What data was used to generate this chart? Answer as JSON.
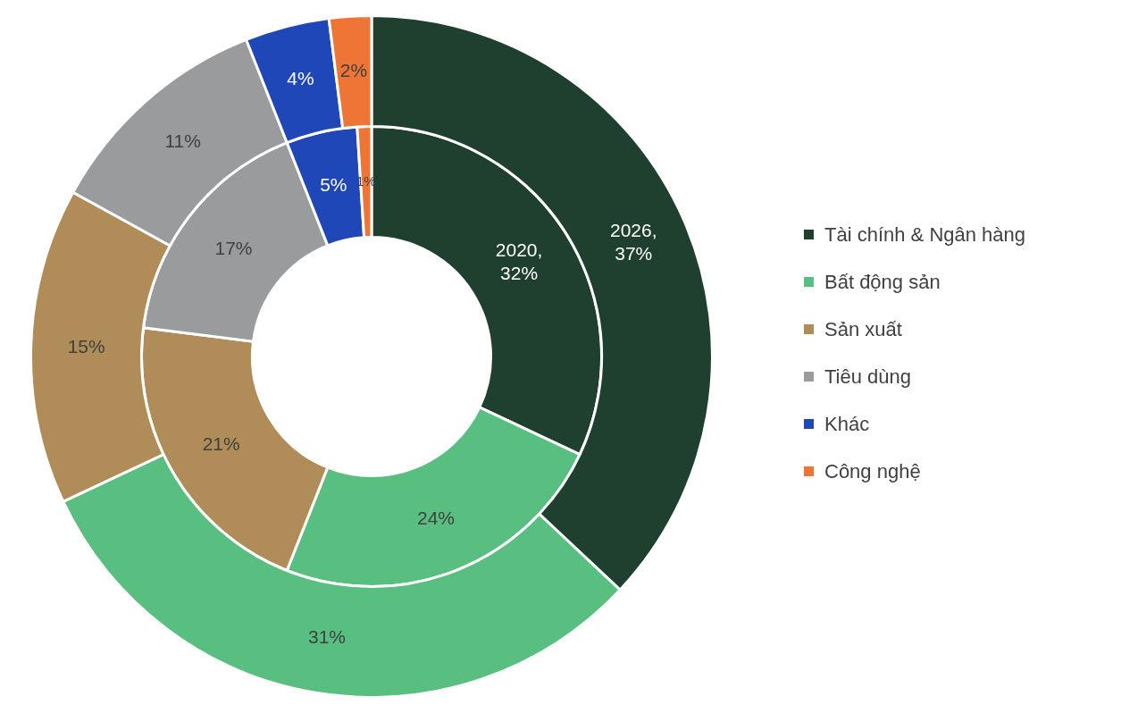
{
  "chart_data": {
    "type": "donut",
    "categories": [
      "Tài chính & Ngân hàng",
      "Bất động sản",
      "Sản xuất",
      "Tiêu dùng",
      "Khác",
      "Công nghệ"
    ],
    "colors": [
      "#1f3f2f",
      "#58bf80",
      "#b08d58",
      "#9a9b9d",
      "#2047b8",
      "#ee7535"
    ],
    "series": [
      {
        "name": "2026",
        "values": [
          37,
          31,
          15,
          11,
          4,
          2
        ],
        "value_labels": [
          ", 37%",
          "31%",
          "15%",
          "11%",
          "4%",
          "2%"
        ]
      },
      {
        "name": "2020",
        "values": [
          32,
          24,
          21,
          17,
          5,
          1
        ],
        "value_labels": [
          ", 32%",
          "24%",
          "21%",
          "17%",
          "5%",
          "1%"
        ]
      }
    ],
    "legend": "right"
  }
}
